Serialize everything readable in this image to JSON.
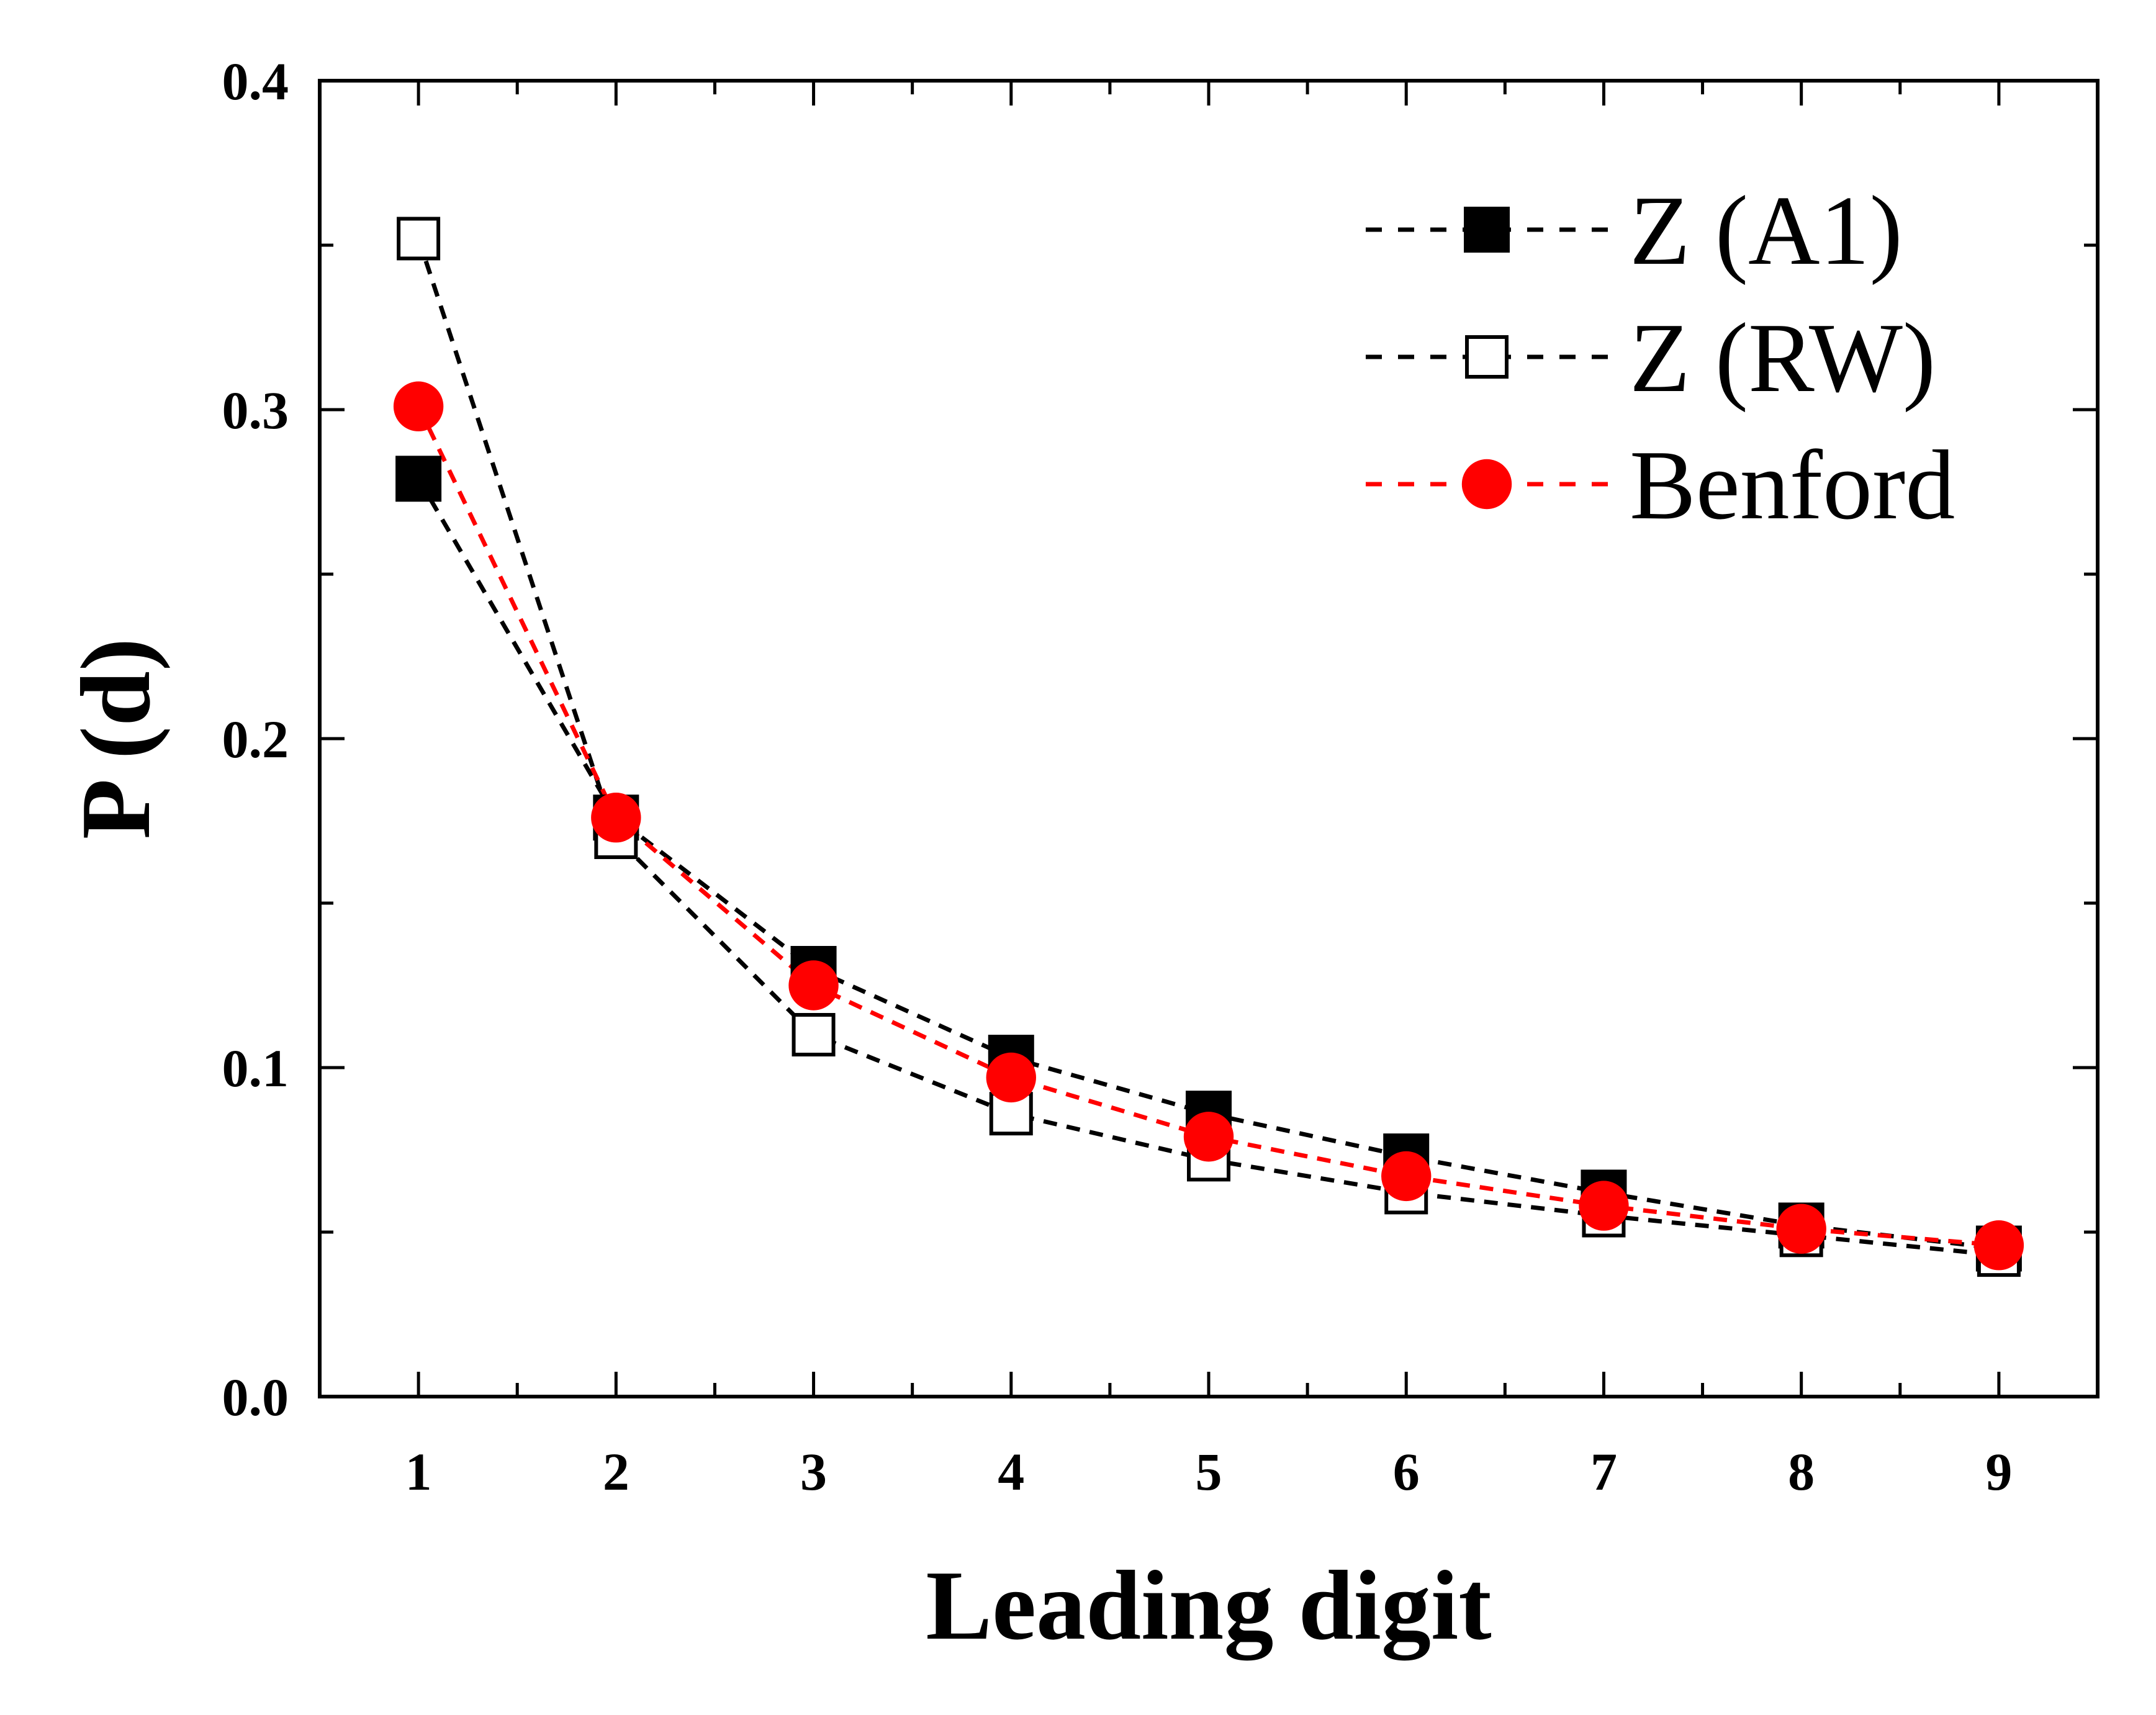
{
  "chart_data": {
    "type": "line",
    "xlabel": "Leading digit",
    "ylabel": "P (d)",
    "x": [
      1,
      2,
      3,
      4,
      5,
      6,
      7,
      8,
      9
    ],
    "xlim": [
      0.5,
      9.5
    ],
    "ylim": [
      0.0,
      0.4
    ],
    "yticks": [
      "0.0",
      "0.1",
      "0.2",
      "0.3",
      "0.4"
    ],
    "xticks": [
      "1",
      "2",
      "3",
      "4",
      "5",
      "6",
      "7",
      "8",
      "9"
    ],
    "grid": false,
    "legend_position": "top-right",
    "series": [
      {
        "name": "Z (A1)",
        "values": [
          0.279,
          0.176,
          0.13,
          0.103,
          0.086,
          0.073,
          0.062,
          0.052,
          0.045
        ],
        "marker": "filled-square",
        "color": "#000000",
        "line": "dashed"
      },
      {
        "name": "Z (RW)",
        "values": [
          0.352,
          0.17,
          0.11,
          0.086,
          0.072,
          0.062,
          0.055,
          0.049,
          0.043
        ],
        "marker": "open-square",
        "color": "#000000",
        "line": "dashed"
      },
      {
        "name": "Benford",
        "values": [
          0.301,
          0.176,
          0.125,
          0.097,
          0.079,
          0.067,
          0.058,
          0.051,
          0.046
        ],
        "marker": "filled-circle",
        "color": "#ff0000",
        "line": "dashed"
      }
    ]
  }
}
